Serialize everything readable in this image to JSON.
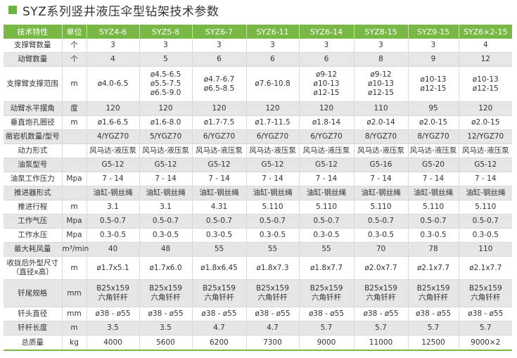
{
  "title": "SYZ系列竖井液压伞型钻架技术参数",
  "colors": {
    "accent": "#78b845",
    "row_alt": "#e6e6e6"
  },
  "table": {
    "headers": [
      "技术特性",
      "单位",
      "SYZ4-6",
      "SYZ5-8",
      "SYZ6-7",
      "SYZ6-11",
      "SYZ6-14",
      "SYZ8-15",
      "SYZ9-15",
      "SYZ6×2-15"
    ],
    "rows": [
      {
        "label": "支撑臂数量",
        "unit": "个",
        "values": [
          "3",
          "3",
          "3",
          "3",
          "3",
          "3",
          "3",
          "4"
        ]
      },
      {
        "label": "动臂数量",
        "unit": "个",
        "values": [
          "4",
          "5",
          "6",
          "6",
          "6",
          "8",
          "9",
          "12"
        ]
      },
      {
        "label": "支撑臂支撑范围",
        "unit": "m",
        "values": [
          "ø4.0-6.5",
          "ø4.5-6.5\nø5.5-7.5\nø6.5-9.0",
          "ø4.7-6.7\nø6.5-8.5",
          "ø7.6-10.8",
          "ø9-12\nø10-13\nø12-15",
          "ø9-12\nø10-13\nø12-15",
          "ø10-13\nø12-15",
          "ø10-13\nø12-15"
        ]
      },
      {
        "label": "动臂水平摆角",
        "unit": "度",
        "values": [
          "120",
          "120",
          "120",
          "120",
          "120",
          "110",
          "95",
          "120"
        ]
      },
      {
        "label": "垂直炮孔圈径",
        "unit": "m",
        "values": [
          "ø1.6-6.5",
          "ø1.6-8.0",
          "ø1.7-7.5",
          "ø1.7-11.5",
          "ø1.8-14",
          "ø2.0-14",
          "ø2.0-15",
          "ø2.0-15"
        ]
      },
      {
        "label": "凿岩机数量/型号",
        "unit": "",
        "values": [
          "4/YGZ70",
          "5/YGZ70",
          "6/YGZ70",
          "6/YGZ70",
          "6/YGZ70",
          "8/YGZ70",
          "8/YGZ70",
          "12/YGZ70"
        ]
      },
      {
        "label": "动力形式",
        "unit": "",
        "values": [
          "风马达-液压泵",
          "风马达-液压泵",
          "风马达-液压泵",
          "风马达-液压泵",
          "风马达-液压泵",
          "风马达-液压泵",
          "风马达-液压泵",
          "风马达-液压泵"
        ]
      },
      {
        "label": "油泵型号",
        "unit": "",
        "values": [
          "G5-12",
          "G5-12",
          "G5-12",
          "G5-12",
          "G5-12",
          "G5-16",
          "G5-20",
          "G5-12"
        ]
      },
      {
        "label": "油泵工作压力",
        "unit": "Mpa",
        "values": [
          "7 - 14",
          "7 - 14",
          "7 - 14",
          "7 - 14",
          "7 - 14",
          "7 - 14",
          "7 - 14",
          "7 - 14"
        ]
      },
      {
        "label": "推进器形式",
        "unit": "",
        "values": [
          "油缸-钢丝绳",
          "油缸-钢丝绳",
          "油缸-钢丝绳",
          "油缸-钢丝绳",
          "油缸-钢丝绳",
          "油缸-钢丝绳",
          "油缸-钢丝绳",
          "油缸-钢丝绳"
        ]
      },
      {
        "label": "推进行程",
        "unit": "m",
        "values": [
          "3.1",
          "3.1",
          "4.31",
          "5.110",
          "5.110",
          "5.110",
          "5.110",
          "5.110"
        ]
      },
      {
        "label": "工作气压",
        "unit": "Mpa",
        "values": [
          "0.5-0.7",
          "0.5-0.7",
          "0.5-0.7",
          "0.5-0.7",
          "0.5-0.7",
          "0.5-0.7",
          "0.5-0.7",
          "0.5-0.7"
        ]
      },
      {
        "label": "工作水压",
        "unit": "Mpa",
        "values": [
          "0.3-0.5",
          "0.3-0.5",
          "0.3-0.5",
          "0.3-0.5",
          "0.3-0.5",
          "0.3-0.5",
          "0.3-0.5",
          "0.3-0.5"
        ]
      },
      {
        "label": "最大耗风量",
        "unit": "m³/min",
        "values": [
          "40",
          "48",
          "55",
          "55",
          "55",
          "70",
          "78",
          "110"
        ]
      },
      {
        "label": "收拢后外型尺寸\n（直径x高）",
        "unit": "m",
        "values": [
          "ø1.7x5.1",
          "ø1.7x6.0",
          "ø1.8x6.45",
          "ø1.8x7.3",
          "ø1.8x7.7",
          "ø2.0x7.7",
          "ø2.1x7.7",
          "ø2.1x7.7"
        ]
      },
      {
        "label": "钎尾规格",
        "unit": "mm",
        "values": [
          "B25x159\n六角钎杆",
          "B25x159\n六角钎杆",
          "B25x159\n六角钎杆",
          "B25x159\n六角钎杆",
          "B25x159\n六角钎杆",
          "B25x159\n六角钎杆",
          "B25x159\n六角钎杆",
          "B25x159\n六角钎杆"
        ]
      },
      {
        "label": "钎头直径",
        "unit": "mm",
        "values": [
          "ø38 - ø55",
          "ø38 - ø55",
          "ø38 - ø55",
          "ø38 - ø55",
          "ø38 - ø55",
          "ø38 - ø55",
          "ø38 - ø55",
          "ø38 - ø55"
        ]
      },
      {
        "label": "钎杆长度",
        "unit": "m",
        "values": [
          "3.5",
          "3.5",
          "4.7",
          "4.7",
          "5.7",
          "5.7",
          "5.7",
          "5.7"
        ]
      },
      {
        "label": "总质量",
        "unit": "kg",
        "values": [
          "4000",
          "5600",
          "6200",
          "7300",
          "9000",
          "11000",
          "12500",
          "9000×2"
        ]
      }
    ]
  }
}
